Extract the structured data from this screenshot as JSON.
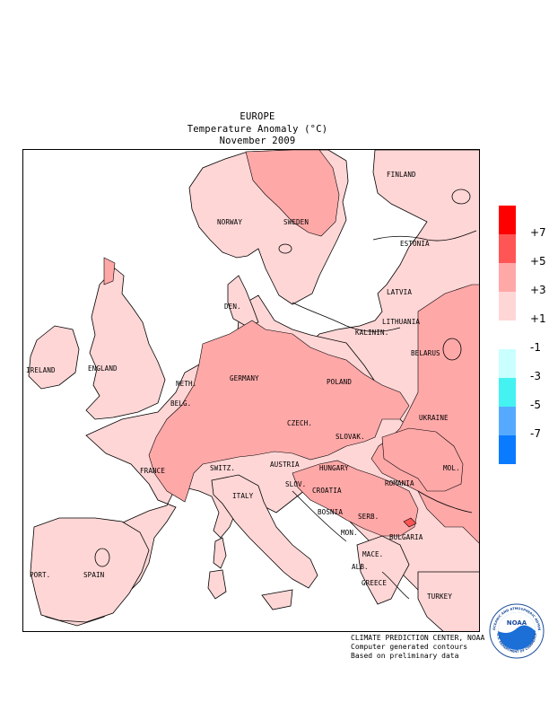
{
  "titles": {
    "region": "EUROPE",
    "variable": "Temperature Anomaly (°C)",
    "period": "November 2009"
  },
  "labels": [
    {
      "id": "finland",
      "text": "FINLAND"
    },
    {
      "id": "norway",
      "text": "NORWAY"
    },
    {
      "id": "sweden",
      "text": "SWEDEN"
    },
    {
      "id": "estonia",
      "text": "ESTONIA"
    },
    {
      "id": "latvia",
      "text": "LATVIA"
    },
    {
      "id": "lithuania",
      "text": "LITHUANIA"
    },
    {
      "id": "kalinin",
      "text": "KALININ."
    },
    {
      "id": "belarus",
      "text": "BELARUS"
    },
    {
      "id": "den",
      "text": "DEN."
    },
    {
      "id": "ireland",
      "text": "IRELAND"
    },
    {
      "id": "england",
      "text": "ENGLAND"
    },
    {
      "id": "neth",
      "text": "NETH."
    },
    {
      "id": "belg",
      "text": "BELG."
    },
    {
      "id": "germany",
      "text": "GERMANY"
    },
    {
      "id": "poland",
      "text": "POLAND"
    },
    {
      "id": "ukraine",
      "text": "UKRAINE"
    },
    {
      "id": "czech",
      "text": "CZECH."
    },
    {
      "id": "slovak",
      "text": "SLOVAK."
    },
    {
      "id": "mol",
      "text": "MOL."
    },
    {
      "id": "france",
      "text": "FRANCE"
    },
    {
      "id": "switz",
      "text": "SWITZ."
    },
    {
      "id": "austria",
      "text": "AUSTRIA"
    },
    {
      "id": "hungary",
      "text": "HUNGARY"
    },
    {
      "id": "romania",
      "text": "ROMANIA"
    },
    {
      "id": "slov",
      "text": "SLOV."
    },
    {
      "id": "croatia",
      "text": "CROATIA"
    },
    {
      "id": "italy",
      "text": "ITALY"
    },
    {
      "id": "bosnia",
      "text": "BOSNIA"
    },
    {
      "id": "serb",
      "text": "SERB."
    },
    {
      "id": "bulgaria",
      "text": "BULGARIA"
    },
    {
      "id": "mon",
      "text": "MON."
    },
    {
      "id": "mace",
      "text": "MACE."
    },
    {
      "id": "alb",
      "text": "ALB."
    },
    {
      "id": "greece",
      "text": "GREECE"
    },
    {
      "id": "turkey",
      "text": "TURKEY"
    },
    {
      "id": "port",
      "text": "PORT."
    },
    {
      "id": "spain",
      "text": "SPAIN"
    }
  ],
  "legend": {
    "bins": [
      {
        "range": "> 7",
        "color": "#ff0000"
      },
      {
        "range": "5 to 7",
        "color": "#ff5555"
      },
      {
        "range": "3 to 5",
        "color": "#ffa8a8"
      },
      {
        "range": "1 to 3",
        "color": "#ffd6d6"
      },
      {
        "range": "-1 to 1",
        "color": "#ffffff"
      },
      {
        "range": "-3 to -1",
        "color": "#c9ffff"
      },
      {
        "range": "-5 to -3",
        "color": "#44f2f2"
      },
      {
        "range": "-7 to -5",
        "color": "#55aaff"
      },
      {
        "range": "< -7",
        "color": "#0a7bff"
      }
    ],
    "ticks": [
      "+7",
      "+5",
      "+3",
      "+1",
      "-1",
      "-3",
      "-5",
      "-7"
    ]
  },
  "credits": {
    "line1": "CLIMATE PREDICTION CENTER, NOAA",
    "line2": "Computer generated contours",
    "line3": "Based on preliminary data"
  },
  "logo": {
    "text": "NOAA",
    "ring_top": "NATIONAL OCEANIC AND ATMOSPHERIC ADMINISTRATION",
    "ring_bottom": "U.S. DEPARTMENT OF COMMERCE"
  }
}
